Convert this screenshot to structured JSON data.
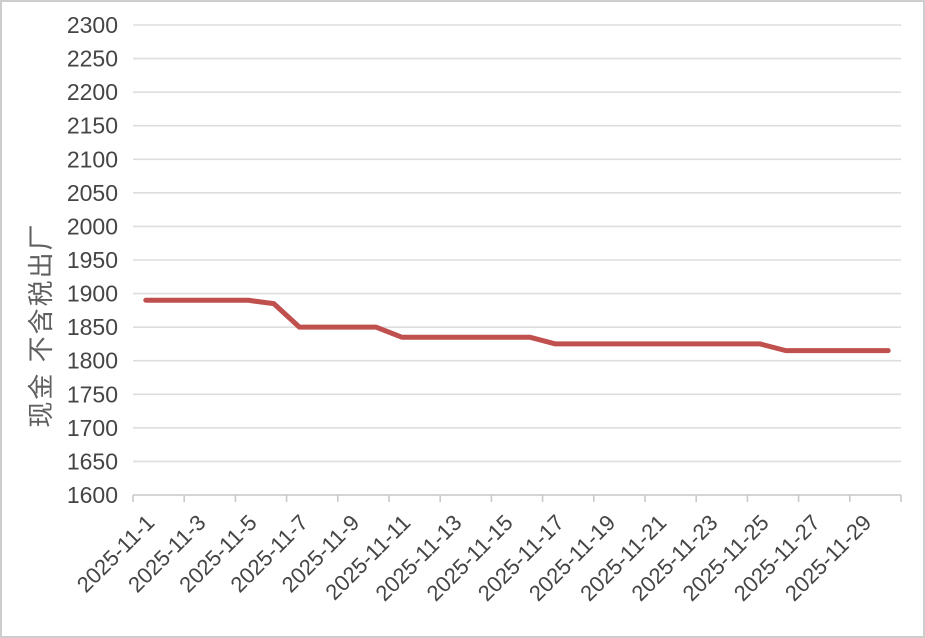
{
  "colors": {
    "background": "#ffffff",
    "frame_border": "#cdcdcd",
    "line": "#c0504d",
    "gridline": "#dedede",
    "axis_line": "#cfcfcf",
    "tick_mark": "#c9c9c9",
    "tick_label_text": "#454545",
    "axis_title_text": "#5f5f5f"
  },
  "chart_data": {
    "type": "line",
    "title": "",
    "xlabel": "",
    "ylabel": "现金 不含税出厂",
    "categories": [
      "2025-11-1",
      "2025-11-2",
      "2025-11-3",
      "2025-11-4",
      "2025-11-5",
      "2025-11-6",
      "2025-11-7",
      "2025-11-8",
      "2025-11-9",
      "2025-11-10",
      "2025-11-11",
      "2025-11-12",
      "2025-11-13",
      "2025-11-14",
      "2025-11-15",
      "2025-11-16",
      "2025-11-17",
      "2025-11-18",
      "2025-11-19",
      "2025-11-20",
      "2025-11-21",
      "2025-11-22",
      "2025-11-23",
      "2025-11-24",
      "2025-11-25",
      "2025-11-26",
      "2025-11-27",
      "2025-11-28",
      "2025-11-29",
      "2025-11-30"
    ],
    "xtick_labels": [
      "2025-11-1",
      "2025-11-3",
      "2025-11-5",
      "2025-11-7",
      "2025-11-9",
      "2025-11-11",
      "2025-11-13",
      "2025-11-15",
      "2025-11-17",
      "2025-11-19",
      "2025-11-21",
      "2025-11-23",
      "2025-11-25",
      "2025-11-27",
      "2025-11-29"
    ],
    "xtick_label_interval": 2,
    "series": [
      {
        "color": "#c0504d",
        "stroke_width": 5,
        "values": [
          1890,
          1890,
          1890,
          1890,
          1890,
          1885,
          1850,
          1850,
          1850,
          1850,
          1835,
          1835,
          1835,
          1835,
          1835,
          1835,
          1825,
          1825,
          1825,
          1825,
          1825,
          1825,
          1825,
          1825,
          1825,
          1815,
          1815,
          1815,
          1815,
          1815
        ]
      }
    ],
    "ylim": [
      1600,
      2300
    ],
    "ytick_step": 50,
    "ytick_labels": [
      "1600",
      "1650",
      "1700",
      "1750",
      "1800",
      "1850",
      "1900",
      "1950",
      "2000",
      "2050",
      "2100",
      "2150",
      "2200",
      "2250",
      "2300"
    ],
    "grid": "horizontal",
    "legend": "none"
  }
}
